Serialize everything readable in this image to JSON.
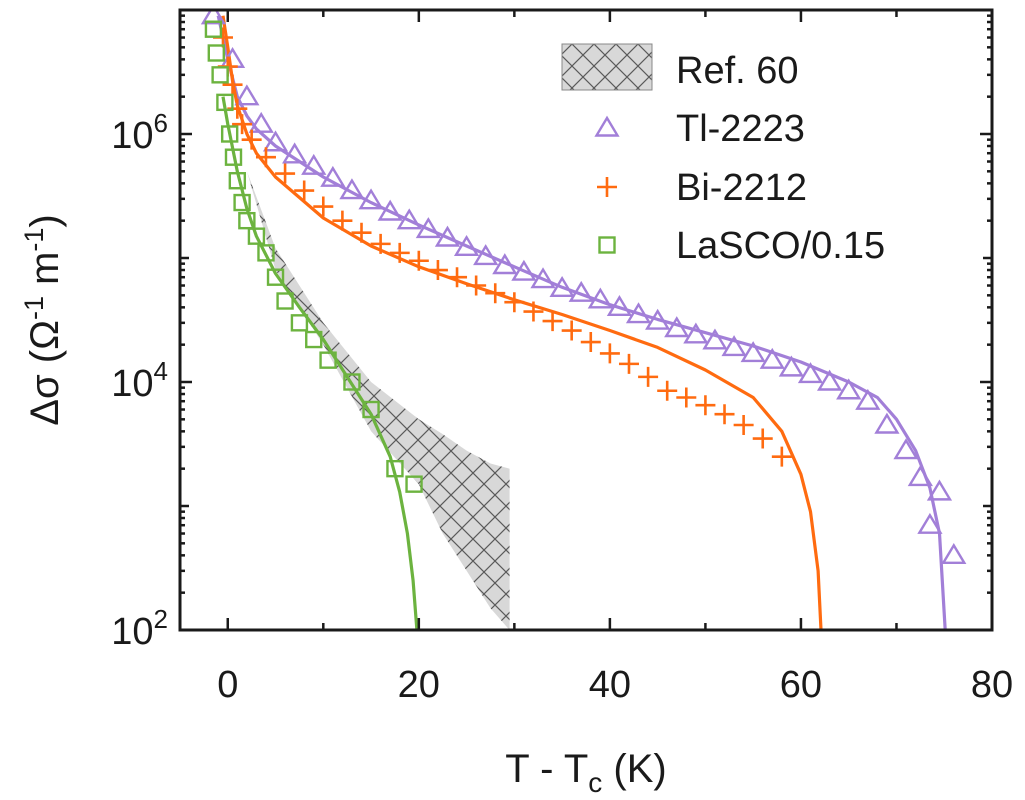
{
  "chart_data": {
    "type": "scatter",
    "title": "",
    "xlabel": {
      "main": "T - T",
      "sub": "c",
      "unit": " (K)"
    },
    "ylabel": {
      "prefix": "Δσ (Ω",
      "sup1": "-1",
      "mid": " m",
      "sup2": "-1",
      "suffix": ")"
    },
    "xlim": [
      -5,
      80
    ],
    "ylim_log10": [
      2,
      7
    ],
    "x_ticks": [
      {
        "value": 0,
        "label": "0"
      },
      {
        "value": 20,
        "label": "20"
      },
      {
        "value": 40,
        "label": "40"
      },
      {
        "value": 60,
        "label": "60"
      },
      {
        "value": 80,
        "label": "80"
      }
    ],
    "y_ticks": [
      {
        "exp": 2,
        "base": "10",
        "sup": "2"
      },
      {
        "exp": 4,
        "base": "10",
        "sup": "4"
      },
      {
        "exp": 6,
        "base": "10",
        "sup": "6"
      }
    ],
    "legend_position": "top-right",
    "reference_band": {
      "name": "Ref. 60",
      "color": "#bbbbbb",
      "x": [
        2.0,
        5,
        10,
        15,
        20,
        22.5,
        25,
        27.5,
        29.5
      ],
      "upper": [
        500000,
        120000,
        30000,
        10000,
        5000,
        3800,
        2800,
        2200,
        2000
      ],
      "lower": [
        500000,
        80000,
        20000,
        4000,
        1500,
        600,
        300,
        150,
        100
      ]
    },
    "series": [
      {
        "name": "Tl-2223",
        "marker": "triangle",
        "color": "#a27fd8",
        "points": [
          [
            -1.5,
            9000000
          ],
          [
            0.5,
            4000000
          ],
          [
            2,
            2000000
          ],
          [
            3.5,
            1200000
          ],
          [
            5,
            850000
          ],
          [
            7,
            680000
          ],
          [
            9,
            550000
          ],
          [
            11,
            440000
          ],
          [
            13,
            350000
          ],
          [
            15,
            290000
          ],
          [
            17,
            235000
          ],
          [
            19,
            200000
          ],
          [
            21,
            170000
          ],
          [
            23,
            145000
          ],
          [
            25,
            122000
          ],
          [
            27,
            103000
          ],
          [
            29,
            87000
          ],
          [
            31,
            77000
          ],
          [
            33,
            67000
          ],
          [
            35,
            57000
          ],
          [
            37,
            52000
          ],
          [
            39,
            46000
          ],
          [
            41,
            40000
          ],
          [
            43,
            35000
          ],
          [
            45,
            31000
          ],
          [
            47,
            27000
          ],
          [
            49,
            24000
          ],
          [
            51,
            21500
          ],
          [
            53,
            19000
          ],
          [
            55,
            17000
          ],
          [
            57,
            15000
          ],
          [
            59,
            13000
          ],
          [
            61,
            11500
          ],
          [
            63,
            10000
          ],
          [
            65,
            8500
          ],
          [
            67,
            7000
          ],
          [
            69,
            4500
          ],
          [
            71,
            2800
          ],
          [
            72.5,
            1700
          ],
          [
            74.5,
            1300
          ],
          [
            73.5,
            700
          ],
          [
            76,
            400
          ]
        ],
        "fit": [
          [
            -1,
            9000000
          ],
          [
            0,
            4000000
          ],
          [
            1,
            2000000
          ],
          [
            2,
            1400000
          ],
          [
            3,
            1100000
          ],
          [
            5,
            800000
          ],
          [
            10,
            450000
          ],
          [
            15,
            280000
          ],
          [
            20,
            185000
          ],
          [
            25,
            125000
          ],
          [
            30,
            85000
          ],
          [
            35,
            58000
          ],
          [
            40,
            42000
          ],
          [
            45,
            32000
          ],
          [
            50,
            25000
          ],
          [
            55,
            19500
          ],
          [
            60,
            14500
          ],
          [
            65,
            10000
          ],
          [
            68,
            7500
          ],
          [
            70,
            5000
          ],
          [
            72,
            2800
          ],
          [
            73.5,
            1400
          ],
          [
            74.5,
            600
          ],
          [
            75.1,
            100
          ]
        ]
      },
      {
        "name": "Bi-2212",
        "marker": "plus",
        "color": "#ff6b10",
        "points": [
          [
            -0.5,
            6000000
          ],
          [
            0,
            3500000
          ],
          [
            0.5,
            2500000
          ],
          [
            1,
            1600000
          ],
          [
            1.5,
            1200000
          ],
          [
            2.5,
            900000
          ],
          [
            4,
            650000
          ],
          [
            6,
            480000
          ],
          [
            8,
            350000
          ],
          [
            10,
            260000
          ],
          [
            12,
            200000
          ],
          [
            14,
            160000
          ],
          [
            16,
            130000
          ],
          [
            18,
            110000
          ],
          [
            20,
            95000
          ],
          [
            22,
            80000
          ],
          [
            24,
            70000
          ],
          [
            26,
            60000
          ],
          [
            28,
            52000
          ],
          [
            30,
            44000
          ],
          [
            32,
            37000
          ],
          [
            34,
            31000
          ],
          [
            36,
            26000
          ],
          [
            38,
            21000
          ],
          [
            40,
            17000
          ],
          [
            42,
            14000
          ],
          [
            44,
            11000
          ],
          [
            46,
            8500
          ],
          [
            48,
            7500
          ],
          [
            50,
            6500
          ],
          [
            52,
            5500
          ],
          [
            54,
            4500
          ],
          [
            56,
            3500
          ],
          [
            58,
            2500
          ]
        ],
        "fit": [
          [
            -0.5,
            9000000
          ],
          [
            0,
            5000000
          ],
          [
            0.5,
            2700000
          ],
          [
            1,
            1700000
          ],
          [
            2,
            1000000
          ],
          [
            3,
            700000
          ],
          [
            5,
            450000
          ],
          [
            10,
            210000
          ],
          [
            15,
            125000
          ],
          [
            20,
            85000
          ],
          [
            25,
            62000
          ],
          [
            30,
            46000
          ],
          [
            35,
            35000
          ],
          [
            40,
            26000
          ],
          [
            45,
            19000
          ],
          [
            50,
            12500
          ],
          [
            55,
            7500
          ],
          [
            58,
            4000
          ],
          [
            60,
            1800
          ],
          [
            61,
            900
          ],
          [
            61.8,
            300
          ],
          [
            62.1,
            100
          ]
        ]
      },
      {
        "name": "LaSCO/0.15",
        "marker": "square",
        "color": "#6cb33f",
        "points": [
          [
            -1.5,
            7000000
          ],
          [
            -1.2,
            4500000
          ],
          [
            -0.8,
            3000000
          ],
          [
            -0.3,
            1800000
          ],
          [
            0.2,
            1000000
          ],
          [
            0.6,
            650000
          ],
          [
            1,
            420000
          ],
          [
            1.5,
            280000
          ],
          [
            2,
            200000
          ],
          [
            3,
            150000
          ],
          [
            4,
            110000
          ],
          [
            5,
            70000
          ],
          [
            6,
            45000
          ],
          [
            7.5,
            30000
          ],
          [
            9,
            22000
          ],
          [
            10.5,
            15000
          ],
          [
            13,
            10000
          ],
          [
            15,
            6000
          ],
          [
            17.5,
            2000
          ],
          [
            19.5,
            1500
          ]
        ],
        "fit": [
          [
            -0.5,
            2000000
          ],
          [
            0,
            1200000
          ],
          [
            1,
            500000
          ],
          [
            2,
            250000
          ],
          [
            3,
            150000
          ],
          [
            5,
            75000
          ],
          [
            7.5,
            40000
          ],
          [
            10,
            22000
          ],
          [
            12.5,
            11000
          ],
          [
            15,
            5500
          ],
          [
            17,
            2500
          ],
          [
            18,
            1300
          ],
          [
            18.8,
            600
          ],
          [
            19.4,
            250
          ],
          [
            19.8,
            100
          ]
        ]
      }
    ]
  }
}
